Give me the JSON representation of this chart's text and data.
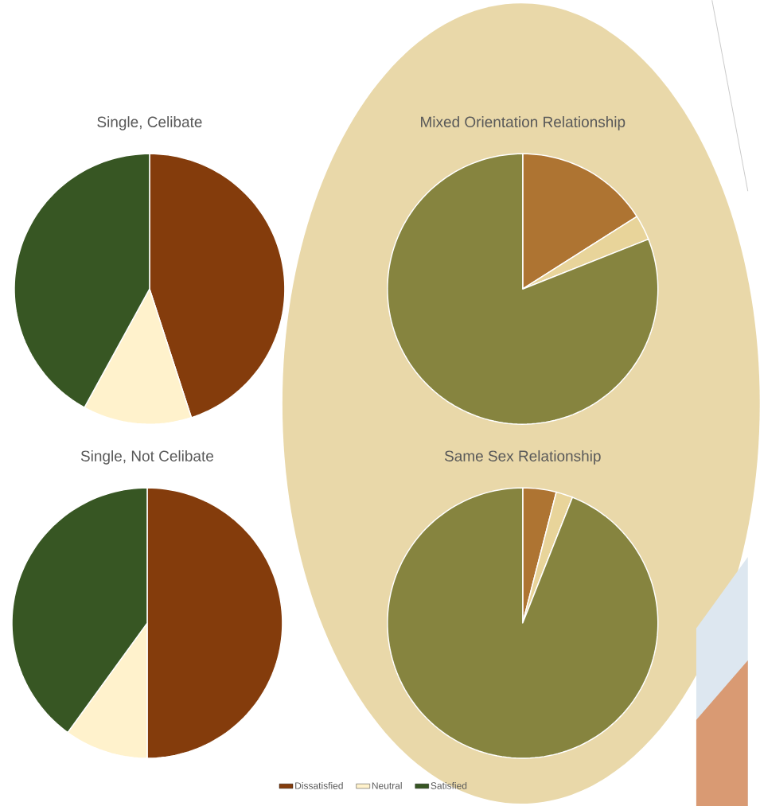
{
  "chart_data": [
    {
      "type": "pie",
      "title": "Single, Celibate",
      "categories": [
        "Dissatisfied",
        "Neutral",
        "Satisfied"
      ],
      "values": [
        45,
        13,
        42
      ],
      "colors": [
        "#843c0c",
        "#fff2cc",
        "#375623"
      ],
      "legend": "bottom"
    },
    {
      "type": "pie",
      "title": "Mixed Orientation Relationship",
      "categories": [
        null,
        null,
        null
      ],
      "values": [
        16,
        3,
        81
      ],
      "colors": [
        "#ae7432",
        "#e8d49a",
        "#86843f"
      ]
    },
    {
      "type": "pie",
      "title": "Single, Not Celibate",
      "categories": [
        null,
        null,
        null
      ],
      "values": [
        50,
        10,
        40
      ],
      "colors": [
        "#843c0c",
        "#fff2cc",
        "#375623"
      ]
    },
    {
      "type": "pie",
      "title": "Same Sex Relationship",
      "categories": [
        null,
        null,
        null
      ],
      "values": [
        4,
        2,
        94
      ],
      "colors": [
        "#ae7432",
        "#e8d49a",
        "#86843f"
      ]
    }
  ]
}
